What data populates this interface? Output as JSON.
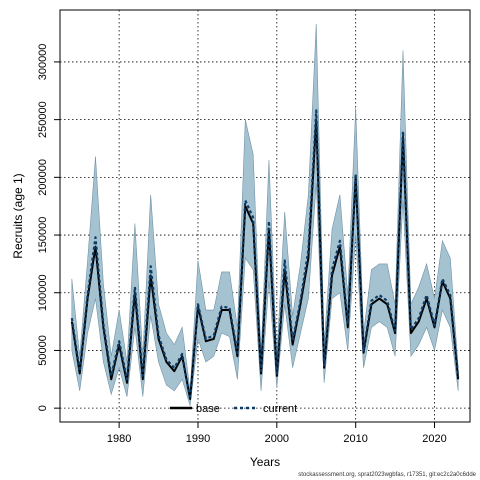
{
  "chart_data": {
    "type": "area",
    "title": "",
    "xlabel": "Years",
    "ylabel": "Recruits (age 1)",
    "xlim": [
      1972.5,
      2024.5
    ],
    "ylim": [
      -12000,
      345000
    ],
    "x_ticks": [
      1980,
      1990,
      2000,
      2010,
      2020
    ],
    "y_ticks": [
      0,
      50000,
      100000,
      150000,
      200000,
      250000,
      300000
    ],
    "x_tick_labels": [
      "1980",
      "1990",
      "2000",
      "2010",
      "2020"
    ],
    "y_tick_labels": [
      "0",
      "50000",
      "100000",
      "150000",
      "200000",
      "250000",
      "300000"
    ],
    "grid": true,
    "legend_position": "bottom",
    "years": [
      1974,
      1975,
      1976,
      1977,
      1978,
      1979,
      1980,
      1981,
      1982,
      1983,
      1984,
      1985,
      1986,
      1987,
      1988,
      1989,
      1990,
      1991,
      1992,
      1993,
      1994,
      1995,
      1996,
      1997,
      1998,
      1999,
      2000,
      2001,
      2002,
      2003,
      2004,
      2005,
      2006,
      2007,
      2008,
      2009,
      2010,
      2011,
      2012,
      2013,
      2014,
      2015,
      2016,
      2017,
      2018,
      2019,
      2020,
      2021,
      2022,
      2023
    ],
    "series": [
      {
        "name": "base",
        "style": "solid",
        "color": "#000000",
        "values": [
          75000,
          30000,
          95000,
          140000,
          70000,
          25000,
          55000,
          22000,
          100000,
          25000,
          115000,
          60000,
          40000,
          32000,
          45000,
          8000,
          88000,
          58000,
          60000,
          85000,
          85000,
          45000,
          175000,
          160000,
          30000,
          155000,
          28000,
          120000,
          55000,
          90000,
          130000,
          250000,
          35000,
          115000,
          140000,
          70000,
          200000,
          48000,
          90000,
          95000,
          90000,
          65000,
          235000,
          65000,
          75000,
          95000,
          70000,
          110000,
          95000,
          25000
        ]
      },
      {
        "name": "current",
        "style": "dashed",
        "color": "#0d3b66",
        "values": [
          78000,
          32000,
          98000,
          148000,
          73000,
          28000,
          58000,
          25000,
          105000,
          28000,
          123000,
          63000,
          42000,
          35000,
          47000,
          8000,
          90000,
          60000,
          63000,
          88000,
          87000,
          48000,
          180000,
          165000,
          32000,
          162000,
          30000,
          128000,
          58000,
          93000,
          137000,
          258000,
          37000,
          120000,
          145000,
          73000,
          203000,
          50000,
          93000,
          98000,
          93000,
          67000,
          240000,
          68000,
          78000,
          98000,
          72000,
          112000,
          98000,
          27000
        ]
      }
    ],
    "uncertainty_band": {
      "color": "#a5c2d1",
      "edge_color": "#6f93a6",
      "lower": [
        50000,
        15000,
        65000,
        95000,
        40000,
        12000,
        35000,
        10000,
        70000,
        10000,
        80000,
        40000,
        20000,
        15000,
        25000,
        2000,
        60000,
        40000,
        45000,
        65000,
        62000,
        25000,
        130000,
        120000,
        15000,
        110000,
        18000,
        90000,
        35000,
        65000,
        95000,
        195000,
        22000,
        95000,
        100000,
        50000,
        150000,
        35000,
        70000,
        75000,
        70000,
        45000,
        180000,
        45000,
        55000,
        70000,
        50000,
        85000,
        70000,
        15000
      ],
      "upper": [
        112000,
        45000,
        128000,
        218000,
        108000,
        45000,
        85000,
        40000,
        160000,
        45000,
        185000,
        90000,
        65000,
        55000,
        70000,
        15000,
        128000,
        85000,
        85000,
        118000,
        118000,
        70000,
        250000,
        220000,
        45000,
        215000,
        45000,
        170000,
        80000,
        125000,
        185000,
        333000,
        55000,
        155000,
        185000,
        98000,
        260000,
        65000,
        120000,
        125000,
        125000,
        90000,
        310000,
        90000,
        105000,
        125000,
        95000,
        145000,
        130000,
        35000
      ]
    },
    "footer_text": "stockassessment.org, sprat2023wgbfas, r17351, git:ec2c2a0c6dde"
  }
}
